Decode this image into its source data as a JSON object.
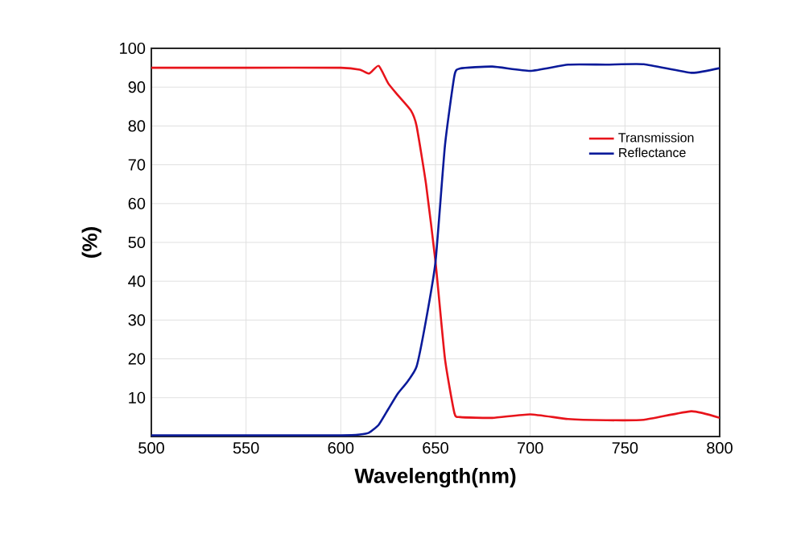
{
  "chart_data": {
    "type": "line",
    "xlabel": "Wavelength(nm)",
    "ylabel": "(%)",
    "xlim": [
      500,
      800
    ],
    "xticks": [
      500,
      550,
      600,
      650,
      700,
      750,
      800
    ],
    "ylim": [
      0,
      100
    ],
    "yticks": [
      {
        "value": 0,
        "label": null
      },
      10,
      20,
      30,
      40,
      50,
      60,
      70,
      80,
      90,
      100
    ],
    "grid": true,
    "legend": "top right",
    "marker": "none",
    "line_style": "solid",
    "series": [
      {
        "name": "Transmission",
        "color": "#e8141b",
        "x": [
          500,
          550,
          600,
          610,
          615,
          620,
          625,
          630,
          637,
          640,
          645,
          650,
          655,
          660,
          663,
          680,
          700,
          720,
          740,
          760,
          785,
          800
        ],
        "values": [
          95,
          95,
          95,
          94.5,
          93.5,
          95.5,
          91,
          88,
          84,
          80,
          65,
          45,
          20,
          6,
          5,
          4.8,
          5.7,
          4.5,
          4.2,
          4.3,
          6.5,
          4.8
        ]
      },
      {
        "name": "Reflectance",
        "color": "#0a1a9a",
        "x": [
          500,
          550,
          600,
          610,
          615,
          620,
          625,
          630,
          635,
          640,
          645,
          650,
          655,
          660,
          663,
          680,
          700,
          720,
          740,
          760,
          785,
          800
        ],
        "values": [
          0.3,
          0.3,
          0.3,
          0.5,
          1,
          3,
          7,
          11,
          14,
          18,
          30,
          45,
          75,
          93,
          94.8,
          95.3,
          94.2,
          95.8,
          95.8,
          95.9,
          93.7,
          94.9
        ]
      }
    ]
  }
}
